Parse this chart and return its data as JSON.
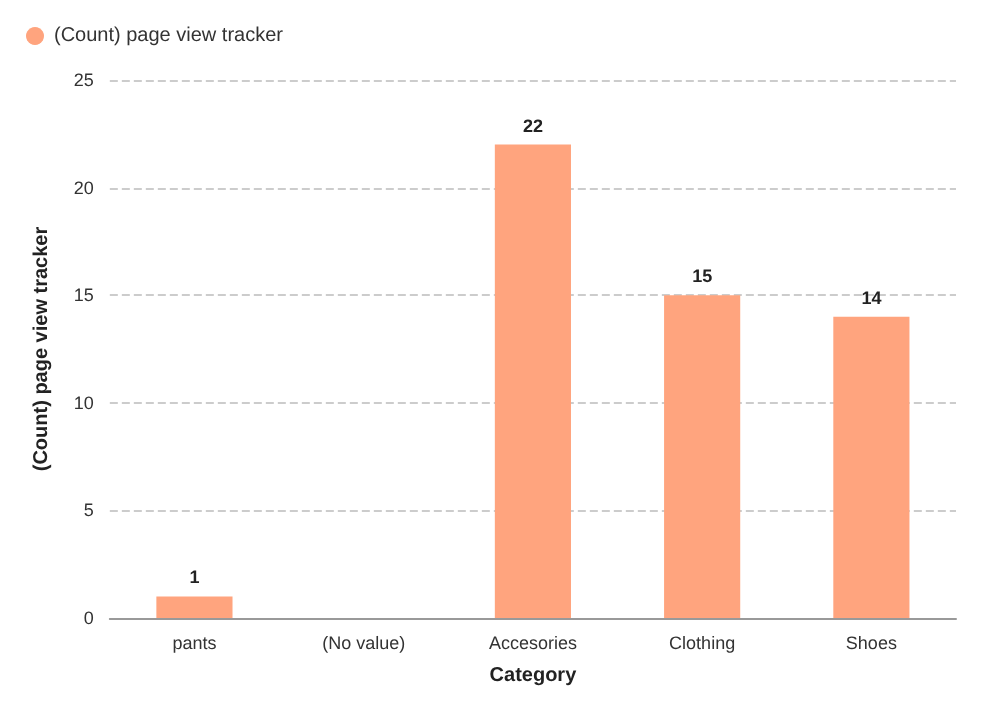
{
  "chart_data": {
    "type": "bar",
    "xlabel": "Category",
    "ylabel": "(Count) page view tracker",
    "categories": [
      "pants",
      "(No value)",
      "Accesories",
      "Clothing",
      "Shoes"
    ],
    "series": [
      {
        "name": "(Count) page view tracker",
        "color": "#ffa47e",
        "values": [
          1,
          null,
          22,
          15,
          14
        ]
      }
    ],
    "ylim": [
      0,
      25
    ],
    "yticks": [
      0,
      5,
      10,
      15,
      20,
      25
    ],
    "grid": "y",
    "legend": "top left",
    "data_labels": true
  }
}
